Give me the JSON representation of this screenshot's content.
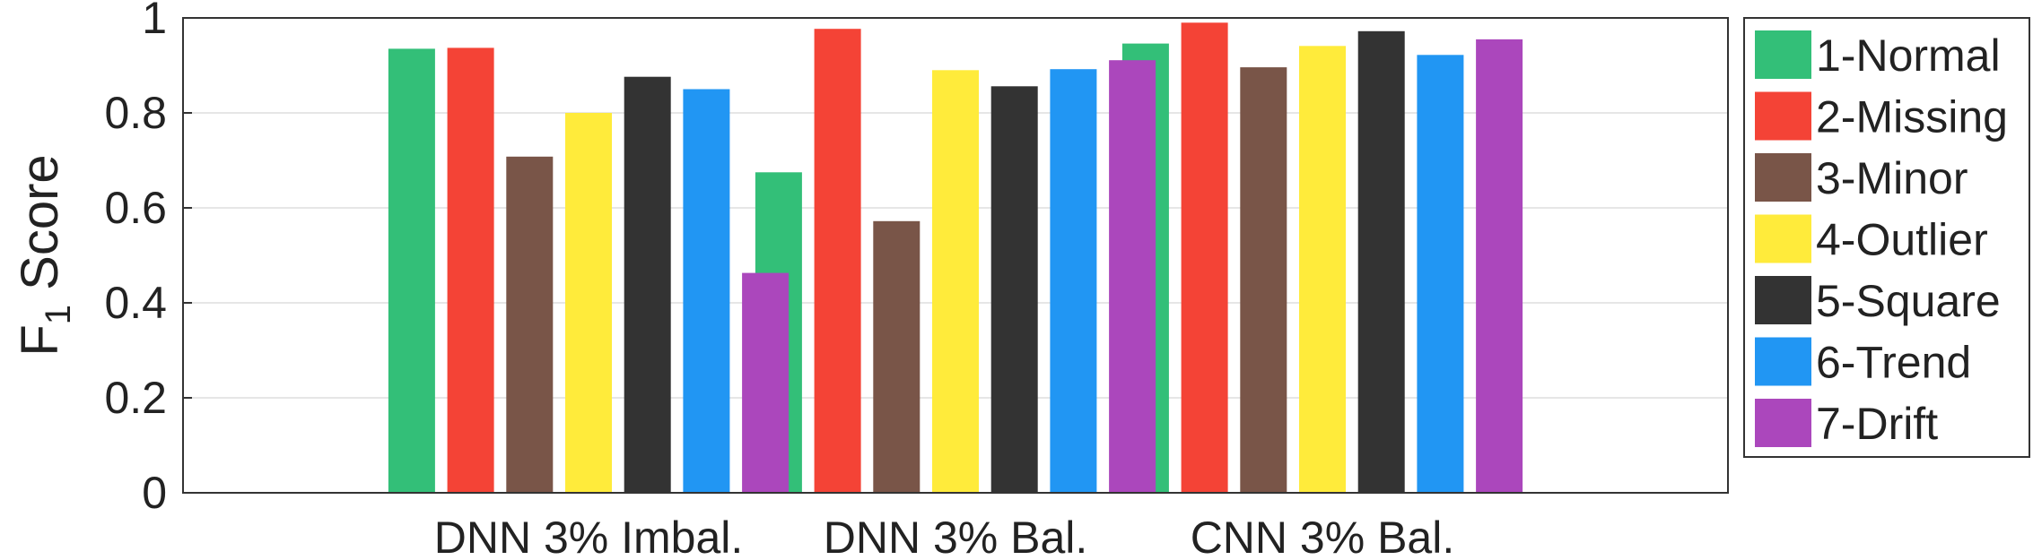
{
  "chart_data": {
    "type": "bar",
    "ylabel_main": "F",
    "ylabel_sub": "1",
    "ylabel_rest": " Score",
    "ylim": [
      0,
      1
    ],
    "yticks": [
      {
        "value": 0,
        "label": "0"
      },
      {
        "value": 0.2,
        "label": "0.2"
      },
      {
        "value": 0.4,
        "label": "0.4"
      },
      {
        "value": 0.6,
        "label": "0.6"
      },
      {
        "value": 0.8,
        "label": "0.8"
      },
      {
        "value": 1,
        "label": "1"
      }
    ],
    "grid": true,
    "legend_position": "right",
    "categories": [
      "DNN 3% Imbal.",
      "DNN 3% Bal.",
      "CNN 3% Bal."
    ],
    "series": [
      {
        "name": "1-Normal",
        "color": "#33bf78",
        "values": [
          0.935,
          0.675,
          0.946
        ]
      },
      {
        "name": "2-Missing",
        "color": "#f44336",
        "values": [
          0.937,
          0.977,
          0.99
        ]
      },
      {
        "name": "3-Minor",
        "color": "#795548",
        "values": [
          0.708,
          0.572,
          0.896
        ]
      },
      {
        "name": "4-Outlier",
        "color": "#ffeb3b",
        "values": [
          0.8,
          0.89,
          0.941
        ]
      },
      {
        "name": "5-Square",
        "color": "#333333",
        "values": [
          0.876,
          0.856,
          0.972
        ]
      },
      {
        "name": "6-Trend",
        "color": "#2196f3",
        "values": [
          0.85,
          0.892,
          0.922
        ]
      },
      {
        "name": "7-Drift",
        "color": "#ab47bc",
        "values": [
          0.463,
          0.911,
          0.955
        ]
      }
    ]
  }
}
